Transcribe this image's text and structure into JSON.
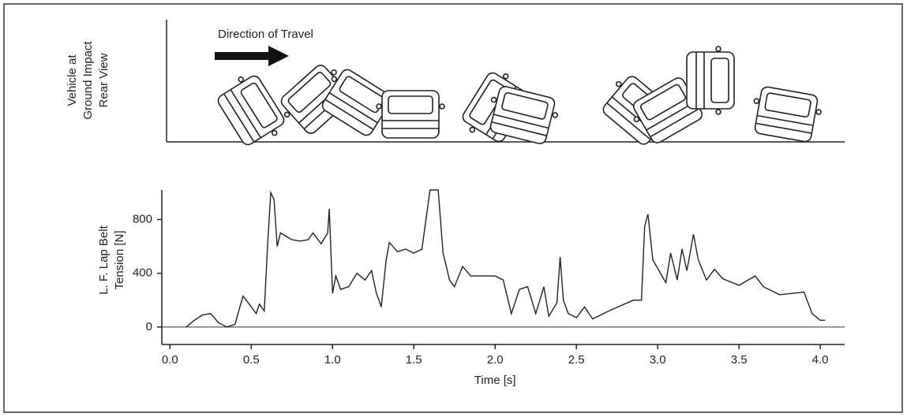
{
  "chart_data": {
    "type": "line",
    "panel_label": [
      "Vehicle at",
      "Ground Impact",
      "Rear View"
    ],
    "annotation": "Direction of Travel",
    "y_label": [
      "L. F. Lap Belt",
      "Tension [N]"
    ],
    "x_label": "Time [s]",
    "xlim": [
      -0.05,
      4.15
    ],
    "ylim": [
      -130,
      1020
    ],
    "xticks": [
      {
        "value": 0,
        "label": "0.0"
      },
      0.5,
      {
        "value": 1,
        "label": "1.0"
      },
      1.5,
      {
        "value": 2,
        "label": "2.0"
      },
      2.5,
      {
        "value": 3,
        "label": "3.0"
      },
      3.5,
      {
        "value": 4,
        "label": "4.0"
      }
    ],
    "yticks": [
      0,
      400,
      800
    ],
    "series": [
      {
        "color": "#222222",
        "x": [
          0.1,
          0.15,
          0.2,
          0.25,
          0.3,
          0.35,
          0.4,
          0.43,
          0.45,
          0.5,
          0.53,
          0.55,
          0.58,
          0.6,
          0.62,
          0.64,
          0.66,
          0.68,
          0.75,
          0.8,
          0.85,
          0.88,
          0.93,
          0.97,
          0.98,
          1.0,
          1.02,
          1.05,
          1.1,
          1.15,
          1.2,
          1.24,
          1.27,
          1.3,
          1.33,
          1.35,
          1.4,
          1.45,
          1.5,
          1.55,
          1.6,
          1.65,
          1.68,
          1.72,
          1.75,
          1.8,
          1.85,
          1.95,
          2.0,
          2.05,
          2.1,
          2.15,
          2.2,
          2.25,
          2.3,
          2.33,
          2.38,
          2.4,
          2.42,
          2.45,
          2.5,
          2.55,
          2.6,
          2.7,
          2.85,
          2.9,
          2.92,
          2.94,
          2.97,
          3.05,
          3.08,
          3.12,
          3.15,
          3.18,
          3.22,
          3.25,
          3.3,
          3.35,
          3.4,
          3.5,
          3.6,
          3.65,
          3.75,
          3.9,
          3.95,
          4.0,
          4.03
        ],
        "values": [
          0,
          50,
          90,
          100,
          30,
          0,
          20,
          150,
          230,
          150,
          100,
          170,
          120,
          600,
          1000,
          950,
          600,
          700,
          650,
          640,
          650,
          700,
          620,
          700,
          880,
          250,
          380,
          280,
          300,
          400,
          350,
          420,
          250,
          150,
          500,
          630,
          560,
          580,
          550,
          580,
          1020,
          1020,
          550,
          350,
          300,
          450,
          380,
          380,
          380,
          350,
          100,
          280,
          300,
          100,
          300,
          80,
          180,
          520,
          200,
          100,
          70,
          150,
          60,
          120,
          200,
          200,
          750,
          840,
          500,
          330,
          550,
          350,
          580,
          420,
          690,
          500,
          350,
          430,
          360,
          310,
          380,
          300,
          240,
          260,
          100,
          50,
          50
        ]
      }
    ]
  }
}
